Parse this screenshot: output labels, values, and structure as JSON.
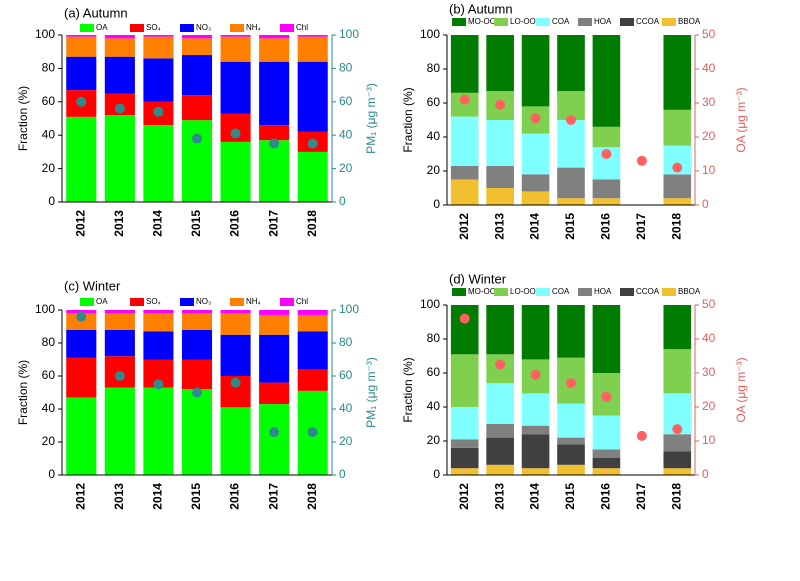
{
  "chart_data": [
    {
      "type": "bar",
      "stacked": true,
      "title": "(a) Autumn",
      "ylabel": "Fraction (%)",
      "y2label": "PM₁ (μg m⁻³)",
      "categories": [
        "2012",
        "2013",
        "2014",
        "2015",
        "2016",
        "2017",
        "2018"
      ],
      "ylim": [
        0,
        100
      ],
      "yticks": [
        0,
        20,
        40,
        60,
        80,
        100
      ],
      "y2lim": [
        0,
        100
      ],
      "y2ticks": [
        0,
        20,
        40,
        60,
        80,
        100
      ],
      "y2color": "#2a8a8a",
      "series": [
        {
          "name": "OA",
          "color": "#00ff00",
          "values": [
            51,
            52,
            46,
            49,
            36,
            37,
            30
          ]
        },
        {
          "name": "SO₄",
          "color": "#ff0000",
          "values": [
            16,
            13,
            14,
            15,
            17,
            9,
            12
          ]
        },
        {
          "name": "NO₃",
          "color": "#0000ff",
          "values": [
            20,
            22,
            26,
            24,
            31,
            38,
            42
          ]
        },
        {
          "name": "NH₄",
          "color": "#ff8000",
          "values": [
            12,
            11,
            13,
            10,
            15,
            14,
            15
          ]
        },
        {
          "name": "Chl",
          "color": "#ff00ff",
          "values": [
            1,
            2,
            1,
            2,
            1,
            2,
            1
          ]
        },
        {
          "type": "scatter",
          "axis": "y2",
          "color": "#2e8b8b",
          "values": [
            60,
            56,
            54,
            38,
            41,
            35,
            35
          ]
        }
      ]
    },
    {
      "type": "bar",
      "stacked": true,
      "title": "(b) Autumn",
      "ylabel": "Fraction (%)",
      "y2label": "OA (μg m⁻³)",
      "categories": [
        "2012",
        "2013",
        "2014",
        "2015",
        "2016",
        "2017",
        "2018"
      ],
      "ylim": [
        0,
        100
      ],
      "yticks": [
        0,
        20,
        40,
        60,
        80,
        100
      ],
      "y2lim": [
        0,
        50
      ],
      "y2ticks": [
        0,
        10,
        20,
        30,
        40,
        50
      ],
      "y2color": "#e06060",
      "series": [
        {
          "name": "BBOA",
          "color": "#f0c030",
          "values": [
            15,
            10,
            8,
            4,
            4,
            null,
            4
          ]
        },
        {
          "name": "CCOA",
          "color": "#404040",
          "values": [
            0,
            0,
            0,
            0,
            0,
            null,
            0
          ]
        },
        {
          "name": "HOA",
          "color": "#808080",
          "values": [
            8,
            13,
            10,
            18,
            11,
            null,
            14
          ]
        },
        {
          "name": "COA",
          "color": "#80ffff",
          "values": [
            29,
            27,
            24,
            28,
            19,
            null,
            17
          ]
        },
        {
          "name": "LO-OOA",
          "color": "#7fd04f",
          "values": [
            14,
            17,
            16,
            17,
            12,
            null,
            21
          ]
        },
        {
          "name": "MO-OOA",
          "color": "#007d00",
          "values": [
            34,
            33,
            42,
            33,
            54,
            null,
            44
          ]
        },
        {
          "type": "scatter",
          "axis": "y2",
          "color": "#ff6060",
          "values": [
            31,
            29.5,
            25.5,
            25,
            15,
            13,
            11
          ]
        }
      ]
    },
    {
      "type": "bar",
      "stacked": true,
      "title": "(c) Winter",
      "ylabel": "Fraction (%)",
      "y2label": "PM₁ (μg m⁻³)",
      "categories": [
        "2012",
        "2013",
        "2014",
        "2015",
        "2016",
        "2017",
        "2018"
      ],
      "ylim": [
        0,
        100
      ],
      "yticks": [
        0,
        20,
        40,
        60,
        80,
        100
      ],
      "y2lim": [
        0,
        100
      ],
      "y2ticks": [
        0,
        20,
        40,
        60,
        80,
        100
      ],
      "y2color": "#2a8a8a",
      "series": [
        {
          "name": "OA",
          "color": "#00ff00",
          "values": [
            47,
            53,
            53,
            52,
            41,
            43,
            51
          ]
        },
        {
          "name": "SO₄",
          "color": "#ff0000",
          "values": [
            24,
            19,
            17,
            18,
            19,
            13,
            13
          ]
        },
        {
          "name": "NO₃",
          "color": "#0000ff",
          "values": [
            17,
            16,
            17,
            18,
            25,
            29,
            23
          ]
        },
        {
          "name": "NH₄",
          "color": "#ff8000",
          "values": [
            10,
            10,
            11,
            10,
            13,
            12,
            10
          ]
        },
        {
          "name": "Chl",
          "color": "#ff00ff",
          "values": [
            2,
            2,
            2,
            2,
            2,
            3,
            3
          ]
        },
        {
          "type": "scatter",
          "axis": "y2",
          "color": "#2e8b8b",
          "values": [
            96,
            60,
            55,
            50,
            56,
            26,
            26
          ]
        }
      ]
    },
    {
      "type": "bar",
      "stacked": true,
      "title": "(d) Winter",
      "ylabel": "Fraction (%)",
      "y2label": "OA (μg m⁻³)",
      "categories": [
        "2012",
        "2013",
        "2014",
        "2015",
        "2016",
        "2017",
        "2018"
      ],
      "ylim": [
        0,
        100
      ],
      "yticks": [
        0,
        20,
        40,
        60,
        80,
        100
      ],
      "y2lim": [
        0,
        50
      ],
      "y2ticks": [
        0,
        10,
        20,
        30,
        40,
        50
      ],
      "y2color": "#e06060",
      "series": [
        {
          "name": "BBOA",
          "color": "#f0c030",
          "values": [
            4,
            6,
            4,
            6,
            4,
            null,
            4
          ]
        },
        {
          "name": "CCOA",
          "color": "#404040",
          "values": [
            12,
            16,
            20,
            12,
            6,
            null,
            10
          ]
        },
        {
          "name": "HOA",
          "color": "#808080",
          "values": [
            5,
            8,
            5,
            4,
            5,
            null,
            10
          ]
        },
        {
          "name": "COA",
          "color": "#80ffff",
          "values": [
            19,
            24,
            19,
            20,
            20,
            null,
            24
          ]
        },
        {
          "name": "LO-OOA",
          "color": "#7fd04f",
          "values": [
            31,
            17,
            20,
            27,
            25,
            null,
            26
          ]
        },
        {
          "name": "MO-OOA",
          "color": "#007d00",
          "values": [
            29,
            29,
            32,
            31,
            40,
            null,
            26
          ]
        },
        {
          "type": "scatter",
          "axis": "y2",
          "color": "#ff6060",
          "values": [
            46,
            32.5,
            29.5,
            27,
            23,
            11.5,
            13.5
          ]
        }
      ]
    }
  ]
}
